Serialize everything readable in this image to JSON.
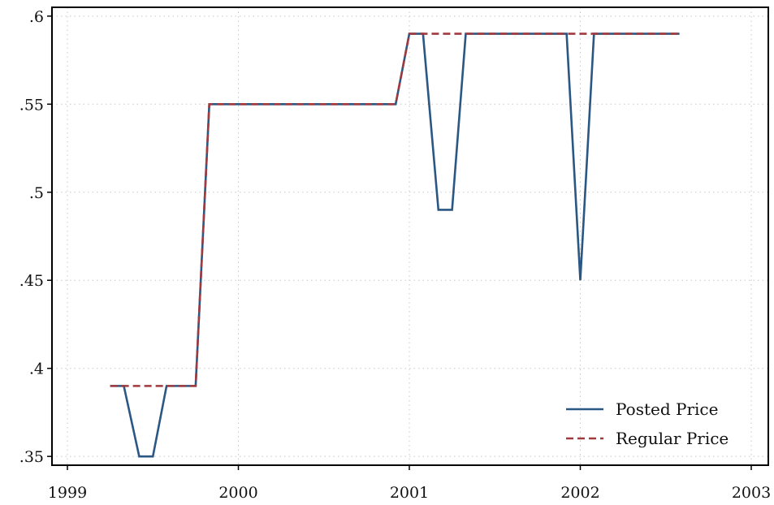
{
  "chart_data": {
    "type": "line",
    "title": "",
    "xlabel": "",
    "ylabel": "",
    "xlim": [
      1999,
      2003
    ],
    "ylim": [
      0.345,
      0.605
    ],
    "xticks": [
      1999,
      2000,
      2001,
      2002,
      2003
    ],
    "xtick_labels": [
      "1999",
      "2000",
      "2001",
      "2002",
      "2003"
    ],
    "yticks": [
      0.35,
      0.4,
      0.45,
      0.5,
      0.55,
      0.6
    ],
    "ytick_labels": [
      ".35",
      ".4",
      ".45",
      ".5",
      ".55",
      ".6"
    ],
    "grid": true,
    "legend_position": "bottom-right",
    "series": [
      {
        "name": "Posted Price",
        "color": "#2a5783",
        "style": "solid",
        "x": [
          1999.25,
          1999.33,
          1999.42,
          1999.5,
          1999.58,
          1999.75,
          1999.83,
          2000.92,
          2001.0,
          2001.08,
          2001.17,
          2001.25,
          2001.33,
          2001.92,
          2002.0,
          2002.08,
          2002.58
        ],
        "y": [
          0.39,
          0.39,
          0.35,
          0.35,
          0.39,
          0.39,
          0.55,
          0.55,
          0.59,
          0.59,
          0.49,
          0.49,
          0.59,
          0.59,
          0.45,
          0.59,
          0.59
        ]
      },
      {
        "name": "Regular Price",
        "color": "#a13a3e",
        "style": "dashed",
        "x": [
          1999.25,
          1999.75,
          1999.83,
          2000.92,
          2001.0,
          2002.58
        ],
        "y": [
          0.39,
          0.39,
          0.55,
          0.55,
          0.59,
          0.59
        ]
      }
    ]
  }
}
